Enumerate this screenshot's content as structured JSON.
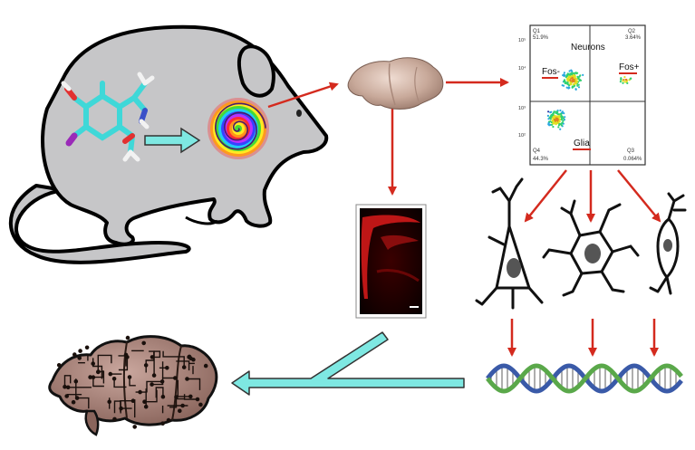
{
  "facs": {
    "title": "Neurons",
    "quadrants": {
      "q1": {
        "label": "Q1",
        "value": "51.9%"
      },
      "q2": {
        "label": "Q2",
        "value": "3.64%"
      },
      "q3": {
        "label": "Q3",
        "value": "0.064%"
      },
      "q4": {
        "label": "Q4",
        "value": "44.3%"
      }
    },
    "gate_labels": {
      "fos_neg": "Fos-",
      "fos_pos": "Fos+",
      "glia": "Glia"
    },
    "y_ticks": [
      "10⁵",
      "10⁴",
      "10³",
      "10²"
    ]
  },
  "colors": {
    "rat_fill": "#c6c6c8",
    "arrow_red": "#d42a1e",
    "arrow_cyan": "#7ee8e2",
    "molecule_carbon": "#3fd8d8",
    "dna_green": "#5aa84a",
    "dna_blue": "#3a5aa8"
  }
}
